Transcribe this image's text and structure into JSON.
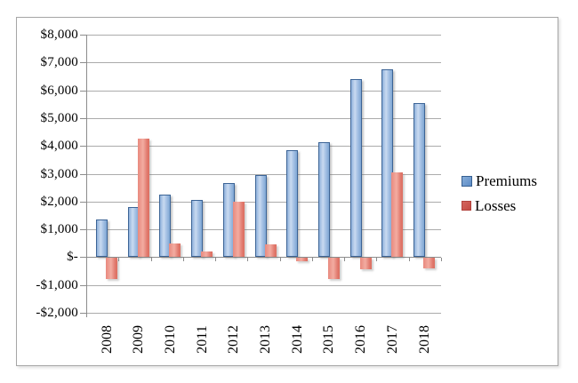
{
  "chart_data": {
    "type": "bar",
    "title": "",
    "categories": [
      "2008",
      "2009",
      "2010",
      "2011",
      "2012",
      "2013",
      "2014",
      "2015",
      "2016",
      "2017",
      "2018"
    ],
    "series": [
      {
        "name": "Premiums",
        "values": [
          1350,
          1800,
          2250,
          2050,
          2650,
          2950,
          3850,
          4150,
          6400,
          6750,
          5550
        ]
      },
      {
        "name": "Losses",
        "values": [
          -800,
          4250,
          500,
          200,
          2000,
          450,
          -150,
          -800,
          -450,
          3050,
          -400
        ]
      }
    ],
    "xlabel": "",
    "ylabel": "",
    "ylim": [
      -2000,
      8000
    ],
    "ytick_step": 1000,
    "ytick_labels": [
      "$8,000",
      "$7,000",
      "$6,000",
      "$5,000",
      "$4,000",
      "$3,000",
      "$2,000",
      "$1,000",
      "$-",
      "-$1,000",
      "-$2,000"
    ],
    "grid": true,
    "legend_position": "right",
    "legend": [
      "Premiums",
      "Losses"
    ],
    "colors": {
      "premiums_fill": "#9dbde2",
      "premiums_fill_light": "#c9daf0",
      "premiums_border": "#3c6496",
      "losses_fill": "#e8897e",
      "losses_fill_light": "#f3aca1",
      "losses_dark": "#dc6f62",
      "legend_premiums_swatch": "#6f9bd3",
      "legend_losses_swatch": "#ca4f48",
      "gridline": "#ababab",
      "axis": "#8c8c8c",
      "text": "#000000"
    }
  }
}
